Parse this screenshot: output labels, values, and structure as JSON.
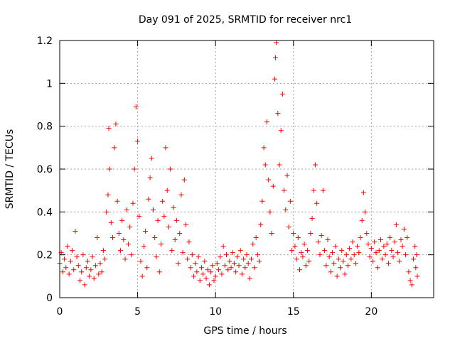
{
  "chart_data": {
    "type": "scatter",
    "title": "Day 091 of 2025, SRMTID for receiver nrc1",
    "xlabel": "GPS time / hours",
    "ylabel": "SRMTID / TECUs",
    "xlim": [
      0,
      24
    ],
    "ylim": [
      0,
      1.2
    ],
    "x_ticks": [
      0,
      5,
      10,
      15,
      20
    ],
    "x_tick_labels": [
      "0",
      "5",
      "10",
      "15",
      "20"
    ],
    "y_ticks": [
      0,
      0.2,
      0.4,
      0.6,
      0.8,
      1.0,
      1.2
    ],
    "y_tick_labels": [
      "0",
      "0.2",
      "0.4",
      "0.6",
      "0.8",
      "1",
      "1.2"
    ],
    "grid": true,
    "marker": "plus",
    "color": "#ff0000",
    "series": [
      {
        "name": "SRMTID",
        "points": [
          [
            0.0,
            0.16
          ],
          [
            0.1,
            0.21
          ],
          [
            0.2,
            0.12
          ],
          [
            0.3,
            0.18
          ],
          [
            0.4,
            0.14
          ],
          [
            0.5,
            0.24
          ],
          [
            0.6,
            0.11
          ],
          [
            0.7,
            0.17
          ],
          [
            0.8,
            0.22
          ],
          [
            0.9,
            0.13
          ],
          [
            1.0,
            0.31
          ],
          [
            1.1,
            0.19
          ],
          [
            1.2,
            0.15
          ],
          [
            1.3,
            0.08
          ],
          [
            1.4,
            0.12
          ],
          [
            1.5,
            0.2
          ],
          [
            1.6,
            0.06
          ],
          [
            1.7,
            0.14
          ],
          [
            1.8,
            0.17
          ],
          [
            1.9,
            0.1
          ],
          [
            2.0,
            0.13
          ],
          [
            2.1,
            0.19
          ],
          [
            2.2,
            0.09
          ],
          [
            2.3,
            0.15
          ],
          [
            2.4,
            0.28
          ],
          [
            2.5,
            0.11
          ],
          [
            2.6,
            0.16
          ],
          [
            2.7,
            0.12
          ],
          [
            2.8,
            0.22
          ],
          [
            2.9,
            0.18
          ],
          [
            3.0,
            0.4
          ],
          [
            3.1,
            0.48
          ],
          [
            3.15,
            0.79
          ],
          [
            3.2,
            0.6
          ],
          [
            3.3,
            0.35
          ],
          [
            3.4,
            0.28
          ],
          [
            3.5,
            0.7
          ],
          [
            3.6,
            0.81
          ],
          [
            3.7,
            0.45
          ],
          [
            3.8,
            0.3
          ],
          [
            3.9,
            0.22
          ],
          [
            4.0,
            0.36
          ],
          [
            4.1,
            0.27
          ],
          [
            4.2,
            0.18
          ],
          [
            4.3,
            0.41
          ],
          [
            4.4,
            0.25
          ],
          [
            4.5,
            0.33
          ],
          [
            4.6,
            0.2
          ],
          [
            4.7,
            0.44
          ],
          [
            4.8,
            0.6
          ],
          [
            4.9,
            0.89
          ],
          [
            5.0,
            0.73
          ],
          [
            5.1,
            0.38
          ],
          [
            5.2,
            0.17
          ],
          [
            5.3,
            0.1
          ],
          [
            5.4,
            0.24
          ],
          [
            5.5,
            0.31
          ],
          [
            5.6,
            0.14
          ],
          [
            5.7,
            0.46
          ],
          [
            5.8,
            0.56
          ],
          [
            5.9,
            0.65
          ],
          [
            6.0,
            0.41
          ],
          [
            6.1,
            0.28
          ],
          [
            6.2,
            0.19
          ],
          [
            6.3,
            0.36
          ],
          [
            6.4,
            0.12
          ],
          [
            6.5,
            0.25
          ],
          [
            6.6,
            0.45
          ],
          [
            6.7,
            0.38
          ],
          [
            6.8,
            0.7
          ],
          [
            6.9,
            0.5
          ],
          [
            7.0,
            0.33
          ],
          [
            7.1,
            0.6
          ],
          [
            7.2,
            0.22
          ],
          [
            7.3,
            0.42
          ],
          [
            7.4,
            0.27
          ],
          [
            7.5,
            0.36
          ],
          [
            7.6,
            0.16
          ],
          [
            7.7,
            0.3
          ],
          [
            7.8,
            0.48
          ],
          [
            7.9,
            0.21
          ],
          [
            8.0,
            0.55
          ],
          [
            8.1,
            0.34
          ],
          [
            8.2,
            0.18
          ],
          [
            8.3,
            0.26
          ],
          [
            8.4,
            0.14
          ],
          [
            8.5,
            0.2
          ],
          [
            8.6,
            0.1
          ],
          [
            8.7,
            0.16
          ],
          [
            8.8,
            0.12
          ],
          [
            8.9,
            0.19
          ],
          [
            9.0,
            0.08
          ],
          [
            9.1,
            0.14
          ],
          [
            9.2,
            0.11
          ],
          [
            9.3,
            0.17
          ],
          [
            9.4,
            0.09
          ],
          [
            9.5,
            0.13
          ],
          [
            9.6,
            0.06
          ],
          [
            9.7,
            0.12
          ],
          [
            9.8,
            0.15
          ],
          [
            9.9,
            0.08
          ],
          [
            10.0,
            0.1
          ],
          [
            10.1,
            0.16
          ],
          [
            10.2,
            0.13
          ],
          [
            10.3,
            0.19
          ],
          [
            10.4,
            0.11
          ],
          [
            10.5,
            0.24
          ],
          [
            10.6,
            0.15
          ],
          [
            10.7,
            0.2
          ],
          [
            10.8,
            0.13
          ],
          [
            10.9,
            0.17
          ],
          [
            11.0,
            0.14
          ],
          [
            11.1,
            0.21
          ],
          [
            11.2,
            0.16
          ],
          [
            11.3,
            0.12
          ],
          [
            11.4,
            0.19
          ],
          [
            11.5,
            0.15
          ],
          [
            11.6,
            0.22
          ],
          [
            11.7,
            0.11
          ],
          [
            11.8,
            0.18
          ],
          [
            11.9,
            0.14
          ],
          [
            12.0,
            0.2
          ],
          [
            12.1,
            0.16
          ],
          [
            12.2,
            0.09
          ],
          [
            12.3,
            0.18
          ],
          [
            12.4,
            0.25
          ],
          [
            12.5,
            0.14
          ],
          [
            12.6,
            0.28
          ],
          [
            12.7,
            0.2
          ],
          [
            12.8,
            0.17
          ],
          [
            12.9,
            0.34
          ],
          [
            13.0,
            0.45
          ],
          [
            13.1,
            0.7
          ],
          [
            13.2,
            0.62
          ],
          [
            13.3,
            0.82
          ],
          [
            13.4,
            0.55
          ],
          [
            13.5,
            0.4
          ],
          [
            13.6,
            0.3
          ],
          [
            13.7,
            0.52
          ],
          [
            13.8,
            1.02
          ],
          [
            13.85,
            1.12
          ],
          [
            13.9,
            1.19
          ],
          [
            14.0,
            0.86
          ],
          [
            14.1,
            0.62
          ],
          [
            14.2,
            0.78
          ],
          [
            14.3,
            0.95
          ],
          [
            14.4,
            0.5
          ],
          [
            14.5,
            0.41
          ],
          [
            14.6,
            0.57
          ],
          [
            14.7,
            0.33
          ],
          [
            14.8,
            0.45
          ],
          [
            14.9,
            0.22
          ],
          [
            15.0,
            0.3
          ],
          [
            15.1,
            0.24
          ],
          [
            15.2,
            0.18
          ],
          [
            15.3,
            0.28
          ],
          [
            15.4,
            0.13
          ],
          [
            15.5,
            0.21
          ],
          [
            15.6,
            0.19
          ],
          [
            15.7,
            0.25
          ],
          [
            15.8,
            0.15
          ],
          [
            15.9,
            0.22
          ],
          [
            16.0,
            0.17
          ],
          [
            16.1,
            0.3
          ],
          [
            16.2,
            0.37
          ],
          [
            16.3,
            0.5
          ],
          [
            16.4,
            0.62
          ],
          [
            16.5,
            0.44
          ],
          [
            16.6,
            0.26
          ],
          [
            16.7,
            0.2
          ],
          [
            16.8,
            0.29
          ],
          [
            16.9,
            0.5
          ],
          [
            17.0,
            0.22
          ],
          [
            17.1,
            0.15
          ],
          [
            17.2,
            0.27
          ],
          [
            17.3,
            0.19
          ],
          [
            17.4,
            0.12
          ],
          [
            17.5,
            0.21
          ],
          [
            17.6,
            0.16
          ],
          [
            17.7,
            0.24
          ],
          [
            17.8,
            0.1
          ],
          [
            17.9,
            0.18
          ],
          [
            18.0,
            0.14
          ],
          [
            18.1,
            0.22
          ],
          [
            18.2,
            0.17
          ],
          [
            18.3,
            0.11
          ],
          [
            18.4,
            0.2
          ],
          [
            18.5,
            0.15
          ],
          [
            18.6,
            0.23
          ],
          [
            18.7,
            0.18
          ],
          [
            18.8,
            0.26
          ],
          [
            18.9,
            0.2
          ],
          [
            19.0,
            0.16
          ],
          [
            19.1,
            0.24
          ],
          [
            19.2,
            0.21
          ],
          [
            19.3,
            0.28
          ],
          [
            19.4,
            0.36
          ],
          [
            19.5,
            0.49
          ],
          [
            19.6,
            0.4
          ],
          [
            19.7,
            0.3
          ],
          [
            19.8,
            0.25
          ],
          [
            19.9,
            0.19
          ],
          [
            20.0,
            0.23
          ],
          [
            20.1,
            0.17
          ],
          [
            20.2,
            0.26
          ],
          [
            20.3,
            0.21
          ],
          [
            20.4,
            0.14
          ],
          [
            20.5,
            0.22
          ],
          [
            20.6,
            0.27
          ],
          [
            20.7,
            0.18
          ],
          [
            20.8,
            0.24
          ],
          [
            20.9,
            0.2
          ],
          [
            21.0,
            0.25
          ],
          [
            21.1,
            0.16
          ],
          [
            21.2,
            0.28
          ],
          [
            21.3,
            0.22
          ],
          [
            21.4,
            0.19
          ],
          [
            21.5,
            0.26
          ],
          [
            21.6,
            0.34
          ],
          [
            21.7,
            0.21
          ],
          [
            21.8,
            0.17
          ],
          [
            21.9,
            0.27
          ],
          [
            22.0,
            0.24
          ],
          [
            22.1,
            0.32
          ],
          [
            22.2,
            0.2
          ],
          [
            22.3,
            0.28
          ],
          [
            22.4,
            0.12
          ],
          [
            22.5,
            0.08
          ],
          [
            22.6,
            0.06
          ],
          [
            22.7,
            0.18
          ],
          [
            22.8,
            0.24
          ],
          [
            22.85,
            0.14
          ],
          [
            22.9,
            0.2
          ],
          [
            22.95,
            0.1
          ]
        ]
      }
    ]
  }
}
